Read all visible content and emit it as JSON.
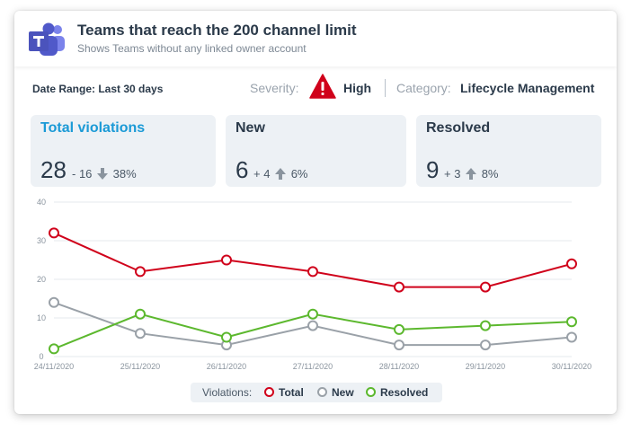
{
  "header": {
    "title": "Teams that reach the 200 channel limit",
    "subtitle": "Shows Teams without any linked owner account",
    "logo_icon": "microsoft-teams-icon"
  },
  "meta": {
    "date_range": "Date Range: Last 30 days",
    "severity_label": "Severity:",
    "severity_value": "High",
    "severity_icon": "warning-triangle-icon",
    "category_label": "Category:",
    "category_value": "Lifecycle Management"
  },
  "stats": [
    {
      "title": "Total violations",
      "value": "28",
      "delta": "- 16",
      "direction": "down",
      "percent": "38%",
      "active": true
    },
    {
      "title": "New",
      "value": "6",
      "delta": "+ 4",
      "direction": "up",
      "percent": "6%",
      "active": false
    },
    {
      "title": "Resolved",
      "value": "9",
      "delta": "+ 3",
      "direction": "up",
      "percent": "8%",
      "active": false
    }
  ],
  "colors": {
    "total": "#d0021b",
    "new": "#9aa1a8",
    "resolved": "#5cb82e",
    "accent": "#1b9ad6"
  },
  "chart_data": {
    "type": "line",
    "categories": [
      "24/11/2020",
      "25/11/2020",
      "26/11/2020",
      "27/11/2020",
      "28/11/2020",
      "29/11/2020",
      "30/11/2020"
    ],
    "yticks": [
      0,
      10,
      20,
      30,
      40
    ],
    "ylim": [
      0,
      40
    ],
    "grid": true,
    "legend_position": "bottom",
    "series": [
      {
        "name": "Total",
        "values": [
          32,
          22,
          25,
          22,
          18,
          18,
          24
        ]
      },
      {
        "name": "New",
        "values": [
          14,
          6,
          3,
          8,
          3,
          3,
          5
        ]
      },
      {
        "name": "Resolved",
        "values": [
          2,
          11,
          5,
          11,
          7,
          8,
          9
        ]
      }
    ]
  },
  "legend": {
    "label": "Violations:",
    "items": [
      "Total",
      "New",
      "Resolved"
    ]
  }
}
